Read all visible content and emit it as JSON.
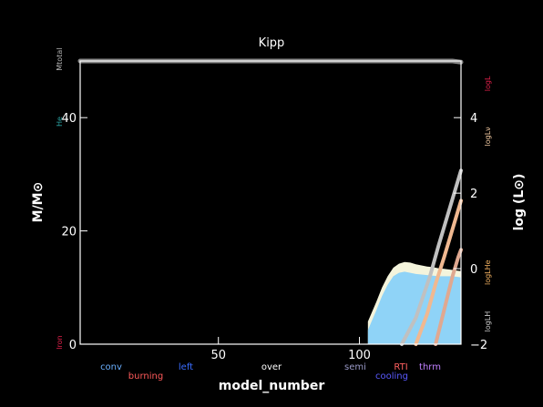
{
  "chart_data": {
    "type": "area",
    "title": "Kipp",
    "xlabel": "model_number",
    "ylabel_left": "M/M⊙",
    "ylabel_right": "log (L⊙)",
    "xlim": [
      1,
      136
    ],
    "ylim_left": [
      0,
      50
    ],
    "ylim_right": [
      -2,
      5.5
    ],
    "x_ticks": [
      {
        "value": 50,
        "label": "50"
      },
      {
        "value": 100,
        "label": "100"
      }
    ],
    "y_ticks_left": [
      {
        "value": 0,
        "label": "0"
      },
      {
        "value": 20,
        "label": "20"
      },
      {
        "value": 40,
        "label": "40"
      }
    ],
    "y_ticks_right": [
      {
        "value": -2,
        "label": "−2"
      },
      {
        "value": 0,
        "label": "0"
      },
      {
        "value": 2,
        "label": "2"
      },
      {
        "value": 4,
        "label": "4"
      }
    ],
    "left_side_labels": [
      {
        "text": "Mtotal",
        "y": 50.3,
        "color": "#b8b8b8"
      },
      {
        "text": "He",
        "y": 39.3,
        "color": "#2aa0a0"
      },
      {
        "text": "Iron",
        "y": 0.3,
        "color": "#e0204a"
      }
    ],
    "right_side_labels": [
      {
        "text": "logL",
        "y": 4.9,
        "color": "#e0204a"
      },
      {
        "text": "logLν",
        "y": 3.5,
        "color": "#f0c8a0"
      },
      {
        "text": "logLHe",
        "y": -0.1,
        "color": "#f0b060"
      },
      {
        "text": "logLH",
        "y": -1.4,
        "color": "#c8c8c8"
      }
    ],
    "legend": [
      {
        "text": "conv",
        "color": "#6ab0ff",
        "row": 0
      },
      {
        "text": "burning",
        "color": "#ff5a5a",
        "row": 1
      },
      {
        "text": "left",
        "color": "#3a6dff",
        "row": 0
      },
      {
        "text": "over",
        "color": "#ffffff",
        "row": 0
      },
      {
        "text": "semi",
        "color": "#9a9ac8",
        "row": 0
      },
      {
        "text": "cooling",
        "color": "#5a5aff",
        "row": 1
      },
      {
        "text": "RTI",
        "color": "#ff6060",
        "row": 0
      },
      {
        "text": "thrm",
        "color": "#c080ff",
        "row": 0
      }
    ],
    "series": [
      {
        "name": "total mass",
        "kind": "line",
        "axis": "left",
        "color": "#8a8a8a",
        "x": [
          1,
          60,
          100,
          120,
          130,
          133,
          136
        ],
        "y": [
          50.5,
          50.5,
          50.45,
          50.4,
          50.3,
          50.1,
          49.8
        ]
      },
      {
        "name": "convective core",
        "kind": "area",
        "axis": "left",
        "color": "#8fd3f7",
        "x": [
          103,
          106,
          108,
          110,
          112,
          114,
          116,
          118,
          120,
          122,
          124,
          126,
          128,
          130,
          133,
          136
        ],
        "y": [
          2.5,
          6.0,
          8.5,
          10.5,
          12.0,
          12.6,
          12.8,
          12.6,
          12.4,
          12.3,
          12.2,
          12.1,
          12.0,
          12.0,
          12.0,
          11.8
        ]
      },
      {
        "name": "overshoot",
        "kind": "area",
        "axis": "left",
        "color": "#f4f4dc",
        "x": [
          103,
          106,
          108,
          110,
          112,
          114,
          116,
          118,
          120,
          122,
          124,
          126,
          128,
          130,
          133,
          136
        ],
        "y": [
          4.0,
          7.5,
          10.0,
          12.0,
          13.5,
          14.2,
          14.5,
          14.4,
          14.1,
          13.9,
          13.7,
          13.6,
          13.4,
          13.3,
          13.1,
          12.9
        ]
      },
      {
        "name": "log L",
        "kind": "line",
        "axis": "right",
        "color": "#c0c0c0",
        "x": [
          115,
          120,
          125,
          128,
          130,
          132,
          134,
          136
        ],
        "y": [
          -2.0,
          -1.3,
          -0.2,
          0.6,
          1.1,
          1.6,
          2.1,
          2.6
        ]
      },
      {
        "name": "log LHe",
        "kind": "line",
        "axis": "right",
        "color": "#f0b890",
        "x": [
          120,
          124,
          127,
          130,
          132,
          134,
          136
        ],
        "y": [
          -2.0,
          -1.2,
          -0.4,
          0.3,
          0.8,
          1.3,
          1.8
        ]
      },
      {
        "name": "log LH",
        "kind": "line",
        "axis": "right",
        "color": "#e0a890",
        "x": [
          127,
          129,
          131,
          133,
          135,
          136
        ],
        "y": [
          -2.0,
          -1.4,
          -0.8,
          -0.2,
          0.3,
          0.5
        ]
      }
    ]
  }
}
